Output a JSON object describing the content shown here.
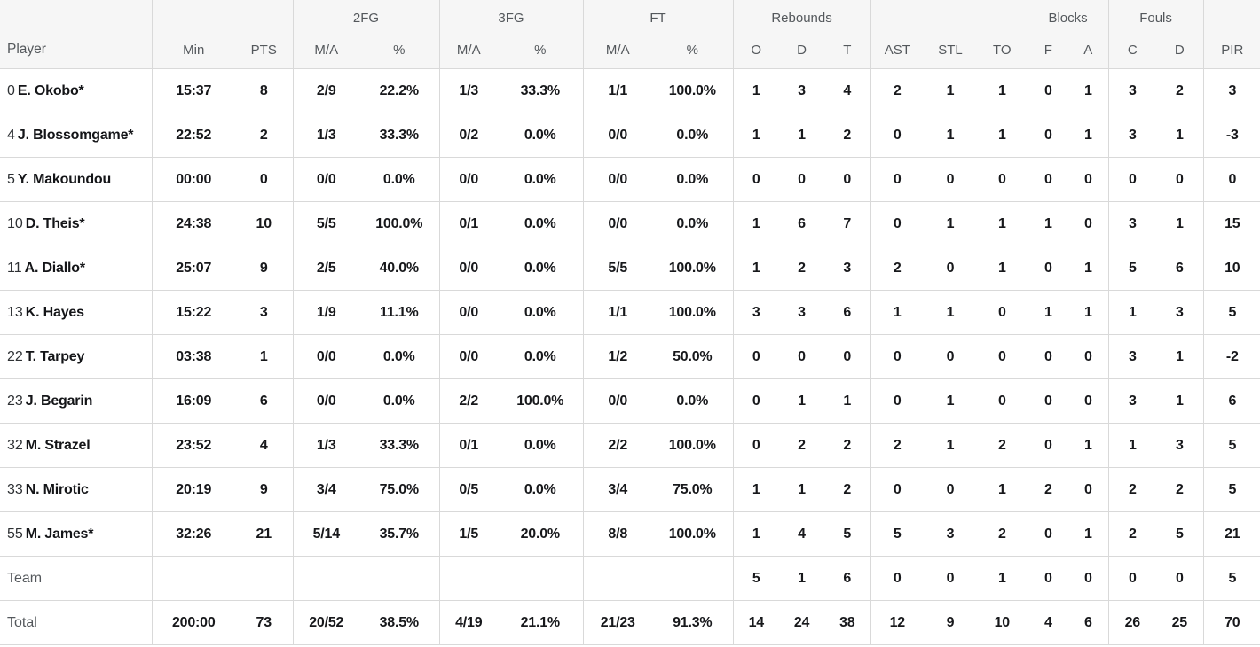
{
  "colors": {
    "header_bg": "#f6f6f6",
    "border": "#d9d9d9",
    "muted_text": "#54585c",
    "stat_text": "#17181b"
  },
  "table": {
    "group_headers": {
      "fg2": "2FG",
      "fg3": "3FG",
      "ft": "FT",
      "rebounds": "Rebounds",
      "blocks": "Blocks",
      "fouls": "Fouls"
    },
    "column_headers": [
      "Player",
      "Min",
      "PTS",
      "M/A",
      "%",
      "M/A",
      "%",
      "M/A",
      "%",
      "O",
      "D",
      "T",
      "AST",
      "STL",
      "TO",
      "F",
      "A",
      "C",
      "D",
      "PIR"
    ],
    "rows": [
      {
        "number": "0",
        "name": "E. Okobo*",
        "summary": false,
        "stats": [
          "15:37",
          "8",
          "2/9",
          "22.2%",
          "1/3",
          "33.3%",
          "1/1",
          "100.0%",
          "1",
          "3",
          "4",
          "2",
          "1",
          "1",
          "0",
          "1",
          "3",
          "2",
          "3"
        ]
      },
      {
        "number": "4",
        "name": "J. Blossomgame*",
        "summary": false,
        "stats": [
          "22:52",
          "2",
          "1/3",
          "33.3%",
          "0/2",
          "0.0%",
          "0/0",
          "0.0%",
          "1",
          "1",
          "2",
          "0",
          "1",
          "1",
          "0",
          "1",
          "3",
          "1",
          "-3"
        ]
      },
      {
        "number": "5",
        "name": "Y. Makoundou",
        "summary": false,
        "stats": [
          "00:00",
          "0",
          "0/0",
          "0.0%",
          "0/0",
          "0.0%",
          "0/0",
          "0.0%",
          "0",
          "0",
          "0",
          "0",
          "0",
          "0",
          "0",
          "0",
          "0",
          "0",
          "0"
        ]
      },
      {
        "number": "10",
        "name": "D. Theis*",
        "summary": false,
        "stats": [
          "24:38",
          "10",
          "5/5",
          "100.0%",
          "0/1",
          "0.0%",
          "0/0",
          "0.0%",
          "1",
          "6",
          "7",
          "0",
          "1",
          "1",
          "1",
          "0",
          "3",
          "1",
          "15"
        ]
      },
      {
        "number": "11",
        "name": "A. Diallo*",
        "summary": false,
        "stats": [
          "25:07",
          "9",
          "2/5",
          "40.0%",
          "0/0",
          "0.0%",
          "5/5",
          "100.0%",
          "1",
          "2",
          "3",
          "2",
          "0",
          "1",
          "0",
          "1",
          "5",
          "6",
          "10"
        ]
      },
      {
        "number": "13",
        "name": "K. Hayes",
        "summary": false,
        "stats": [
          "15:22",
          "3",
          "1/9",
          "11.1%",
          "0/0",
          "0.0%",
          "1/1",
          "100.0%",
          "3",
          "3",
          "6",
          "1",
          "1",
          "0",
          "1",
          "1",
          "1",
          "3",
          "5"
        ]
      },
      {
        "number": "22",
        "name": "T. Tarpey",
        "summary": false,
        "stats": [
          "03:38",
          "1",
          "0/0",
          "0.0%",
          "0/0",
          "0.0%",
          "1/2",
          "50.0%",
          "0",
          "0",
          "0",
          "0",
          "0",
          "0",
          "0",
          "0",
          "3",
          "1",
          "-2"
        ]
      },
      {
        "number": "23",
        "name": "J. Begarin",
        "summary": false,
        "stats": [
          "16:09",
          "6",
          "0/0",
          "0.0%",
          "2/2",
          "100.0%",
          "0/0",
          "0.0%",
          "0",
          "1",
          "1",
          "0",
          "1",
          "0",
          "0",
          "0",
          "3",
          "1",
          "6"
        ]
      },
      {
        "number": "32",
        "name": "M. Strazel",
        "summary": false,
        "stats": [
          "23:52",
          "4",
          "1/3",
          "33.3%",
          "0/1",
          "0.0%",
          "2/2",
          "100.0%",
          "0",
          "2",
          "2",
          "2",
          "1",
          "2",
          "0",
          "1",
          "1",
          "3",
          "5"
        ]
      },
      {
        "number": "33",
        "name": "N. Mirotic",
        "summary": false,
        "stats": [
          "20:19",
          "9",
          "3/4",
          "75.0%",
          "0/5",
          "0.0%",
          "3/4",
          "75.0%",
          "1",
          "1",
          "2",
          "0",
          "0",
          "1",
          "2",
          "0",
          "2",
          "2",
          "5"
        ]
      },
      {
        "number": "55",
        "name": "M. James*",
        "summary": false,
        "stats": [
          "32:26",
          "21",
          "5/14",
          "35.7%",
          "1/5",
          "20.0%",
          "8/8",
          "100.0%",
          "1",
          "4",
          "5",
          "5",
          "3",
          "2",
          "0",
          "1",
          "2",
          "5",
          "21"
        ]
      },
      {
        "number": "",
        "name": "Team",
        "summary": true,
        "stats": [
          "",
          "",
          "",
          "",
          "",
          "",
          "",
          "",
          "5",
          "1",
          "6",
          "0",
          "0",
          "1",
          "0",
          "0",
          "0",
          "0",
          "5"
        ]
      },
      {
        "number": "",
        "name": "Total",
        "summary": true,
        "stats": [
          "200:00",
          "73",
          "20/52",
          "38.5%",
          "4/19",
          "21.1%",
          "21/23",
          "91.3%",
          "14",
          "24",
          "38",
          "12",
          "9",
          "10",
          "4",
          "6",
          "26",
          "25",
          "70"
        ]
      }
    ]
  }
}
